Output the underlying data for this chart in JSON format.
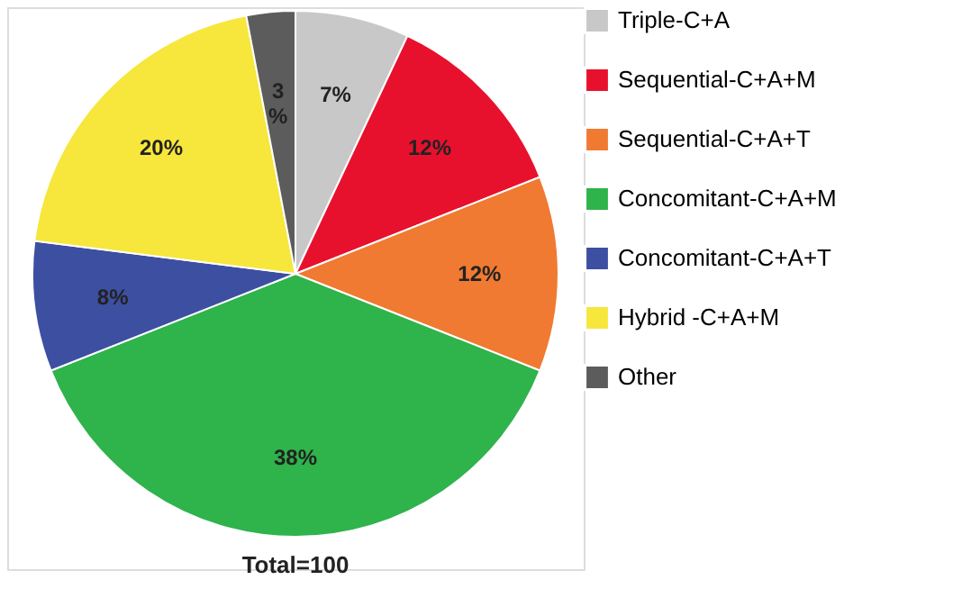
{
  "chart_data": {
    "type": "pie",
    "categories": [
      "Triple-C+A",
      "Sequential-C+A+M",
      "Sequential-C+A+T",
      "Concomitant-C+A+M",
      "Concomitant-C+A+T",
      "Hybrid -C+A+M",
      "Other"
    ],
    "values": [
      7,
      12,
      12,
      38,
      8,
      20,
      3
    ],
    "colors": [
      "#c8c8c8",
      "#e8112d",
      "#f07a32",
      "#2fb34b",
      "#3d4fa1",
      "#f7e63c",
      "#5c5c5c"
    ],
    "value_labels": [
      "7%",
      "12%",
      "12%",
      "38%",
      "8%",
      "20%",
      "3%"
    ],
    "legend": "right",
    "annotations": [
      "Total=100"
    ]
  }
}
